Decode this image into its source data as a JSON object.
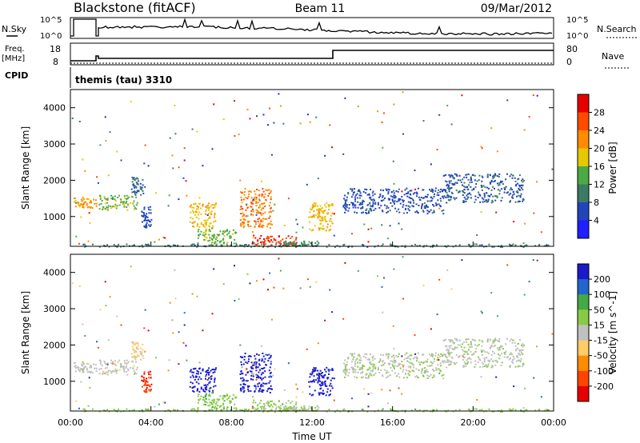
{
  "header": {
    "site": "Blackstone (fitACF)",
    "beam": "Beam 11",
    "date": "09/Mar/2012"
  },
  "top_panel": {
    "left_label": "N.Sky",
    "right_label": "N.Search",
    "tick_top": "10^5",
    "tick_bottom": "10^0",
    "right_tick_top": "10^5",
    "right_tick_bottom": "10^0"
  },
  "freq_panel": {
    "left_label": "Freq.",
    "left_unit": "[MHz]",
    "left_ticks": [
      "18",
      "8"
    ],
    "right_label": "Nave",
    "right_ticks": [
      "80",
      "0"
    ]
  },
  "cpid": {
    "label": "CPID",
    "mode": "themis (tau) 3310"
  },
  "colors": {
    "power_scale": [
      "#1f1fff",
      "#2244bb",
      "#3c7a66",
      "#4caa44",
      "#e6c800",
      "#ff8c00",
      "#ff4a00",
      "#e60000"
    ],
    "velocity_scale": [
      "#1a1acc",
      "#2266cc",
      "#44aa44",
      "#88cc44",
      "#c0c0c0",
      "#ffcc66",
      "#ff8c00",
      "#ff4400",
      "#e60000"
    ]
  },
  "chart_data": [
    {
      "type": "heatmap",
      "title": "",
      "ylabel": "Slant Range [km]",
      "ylim": [
        180,
        4500
      ],
      "yticks": [
        "4000",
        "3000",
        "2000",
        "1000"
      ],
      "xlim": [
        0,
        24
      ],
      "colorbar": {
        "label": "Power [dB]",
        "ticks": [
          "28",
          "24",
          "20",
          "16",
          "12",
          "8",
          "4"
        ],
        "range": [
          0,
          30
        ]
      },
      "patches": [
        {
          "t0": 0.1,
          "t1": 1.3,
          "r0": 1250,
          "r1": 1550,
          "v": 20
        },
        {
          "t0": 1.4,
          "t1": 3.3,
          "r0": 1200,
          "r1": 1600,
          "v": 14
        },
        {
          "t0": 3.0,
          "t1": 3.6,
          "r0": 1600,
          "r1": 2100,
          "v": 8
        },
        {
          "t0": 3.5,
          "t1": 4.0,
          "r0": 700,
          "r1": 1300,
          "v": 6
        },
        {
          "t0": 5.9,
          "t1": 7.2,
          "r0": 700,
          "r1": 1400,
          "v": 18
        },
        {
          "t0": 6.3,
          "t1": 8.2,
          "r0": 250,
          "r1": 700,
          "v": 14
        },
        {
          "t0": 8.4,
          "t1": 10.0,
          "r0": 700,
          "r1": 1800,
          "v": 22
        },
        {
          "t0": 9.0,
          "t1": 11.3,
          "r0": 200,
          "r1": 500,
          "v": 26
        },
        {
          "t0": 10.5,
          "t1": 12.3,
          "r0": 200,
          "r1": 350,
          "v": 10
        },
        {
          "t0": 11.8,
          "t1": 13.0,
          "r0": 600,
          "r1": 1400,
          "v": 18
        },
        {
          "t0": 13.5,
          "t1": 18.5,
          "r0": 1100,
          "r1": 1800,
          "v": 6
        },
        {
          "t0": 18.5,
          "t1": 22.5,
          "r0": 1400,
          "r1": 2200,
          "v": 7
        },
        {
          "t0": 0.0,
          "t1": 24.0,
          "r0": 180,
          "r1": 260,
          "v": 9
        }
      ]
    },
    {
      "type": "heatmap",
      "title": "",
      "xlabel": "Time UT",
      "ylabel": "Slant Range [km]",
      "ylim": [
        180,
        4500
      ],
      "yticks": [
        "4000",
        "3000",
        "2000",
        "1000"
      ],
      "xlim": [
        0,
        24
      ],
      "xticks": [
        "00:00",
        "04:00",
        "08:00",
        "12:00",
        "16:00",
        "20:00",
        "00:00"
      ],
      "colorbar": {
        "label": "Velocity [m s^-1]",
        "ticks": [
          "200",
          "100",
          "50",
          "15",
          "-15",
          "-50",
          "-100",
          "-200"
        ],
        "range": [
          -250,
          250
        ]
      },
      "patches": [
        {
          "t0": 0.1,
          "t1": 1.3,
          "r0": 1250,
          "r1": 1550,
          "v": 0
        },
        {
          "t0": 1.4,
          "t1": 3.3,
          "r0": 1200,
          "r1": 1600,
          "v": 0
        },
        {
          "t0": 3.0,
          "t1": 3.6,
          "r0": 1600,
          "r1": 2100,
          "v": -40
        },
        {
          "t0": 3.5,
          "t1": 4.0,
          "r0": 700,
          "r1": 1300,
          "v": -180
        },
        {
          "t0": 5.9,
          "t1": 7.2,
          "r0": 700,
          "r1": 1400,
          "v": 220
        },
        {
          "t0": 6.3,
          "t1": 8.2,
          "r0": 250,
          "r1": 700,
          "v": 60
        },
        {
          "t0": 8.4,
          "t1": 10.0,
          "r0": 700,
          "r1": 1800,
          "v": 220
        },
        {
          "t0": 9.0,
          "t1": 11.3,
          "r0": 200,
          "r1": 500,
          "v": 40
        },
        {
          "t0": 10.5,
          "t1": 12.3,
          "r0": 200,
          "r1": 350,
          "v": 30
        },
        {
          "t0": 11.8,
          "t1": 13.0,
          "r0": 600,
          "r1": 1400,
          "v": 220
        },
        {
          "t0": 13.5,
          "t1": 18.5,
          "r0": 1100,
          "r1": 1800,
          "v": 20
        },
        {
          "t0": 18.5,
          "t1": 22.5,
          "r0": 1400,
          "r1": 2200,
          "v": 10
        },
        {
          "t0": 0.0,
          "t1": 24.0,
          "r0": 180,
          "r1": 260,
          "v": 60
        }
      ]
    }
  ]
}
